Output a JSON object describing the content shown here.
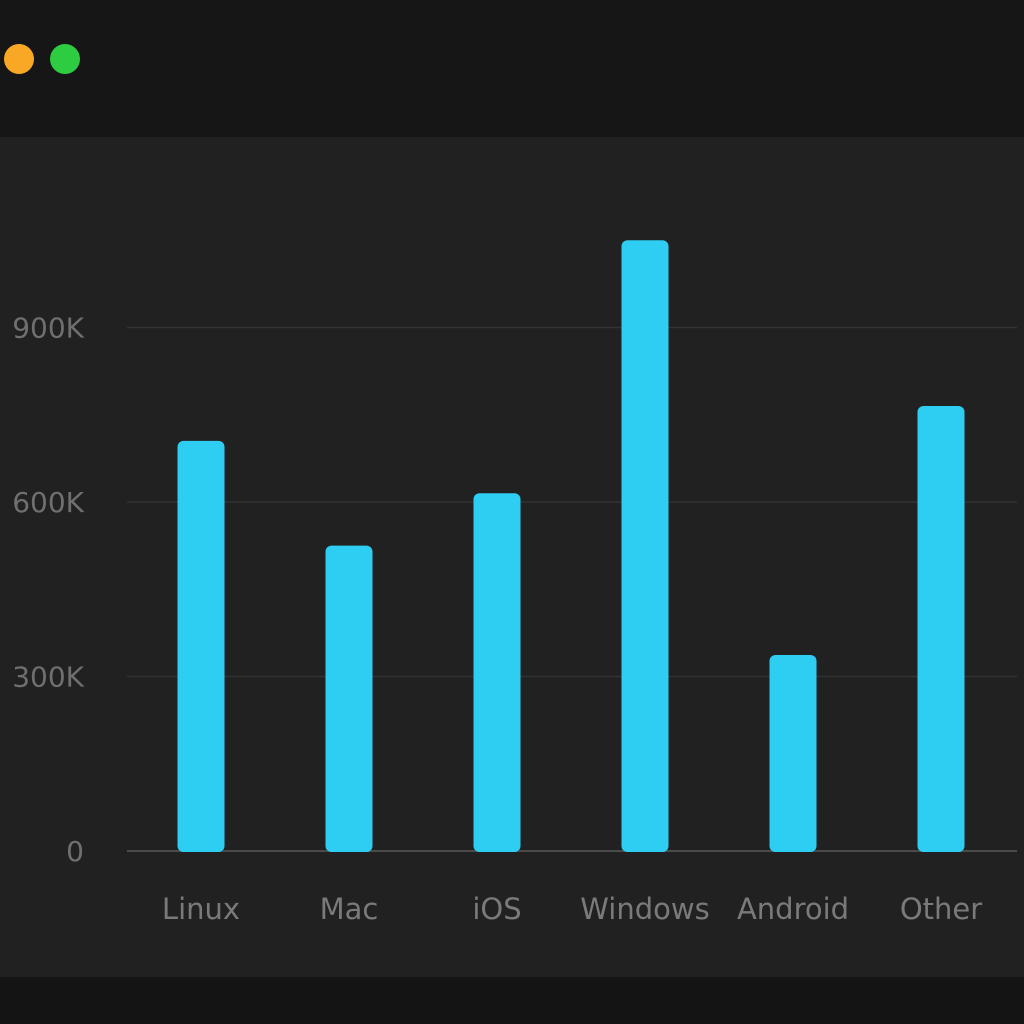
{
  "colors": {
    "bar": "#2ECDF2",
    "grid": "#333333",
    "axis": "#4a4a4a",
    "minimize_dot": "#F9A825",
    "maximize_dot": "#2ECC40"
  },
  "chart_data": {
    "type": "bar",
    "categories": [
      "Linux",
      "Mac",
      "iOS",
      "Windows",
      "Android",
      "Other"
    ],
    "values": [
      705000,
      525000,
      615000,
      1050000,
      337000,
      765000
    ],
    "yticks": [
      0,
      300000,
      600000,
      900000
    ],
    "ytick_labels": [
      "0",
      "300K",
      "600K",
      "900K"
    ],
    "ylim": [
      0,
      1050000
    ],
    "grid": true,
    "legend": "none",
    "title": "",
    "xlabel": "",
    "ylabel": ""
  }
}
